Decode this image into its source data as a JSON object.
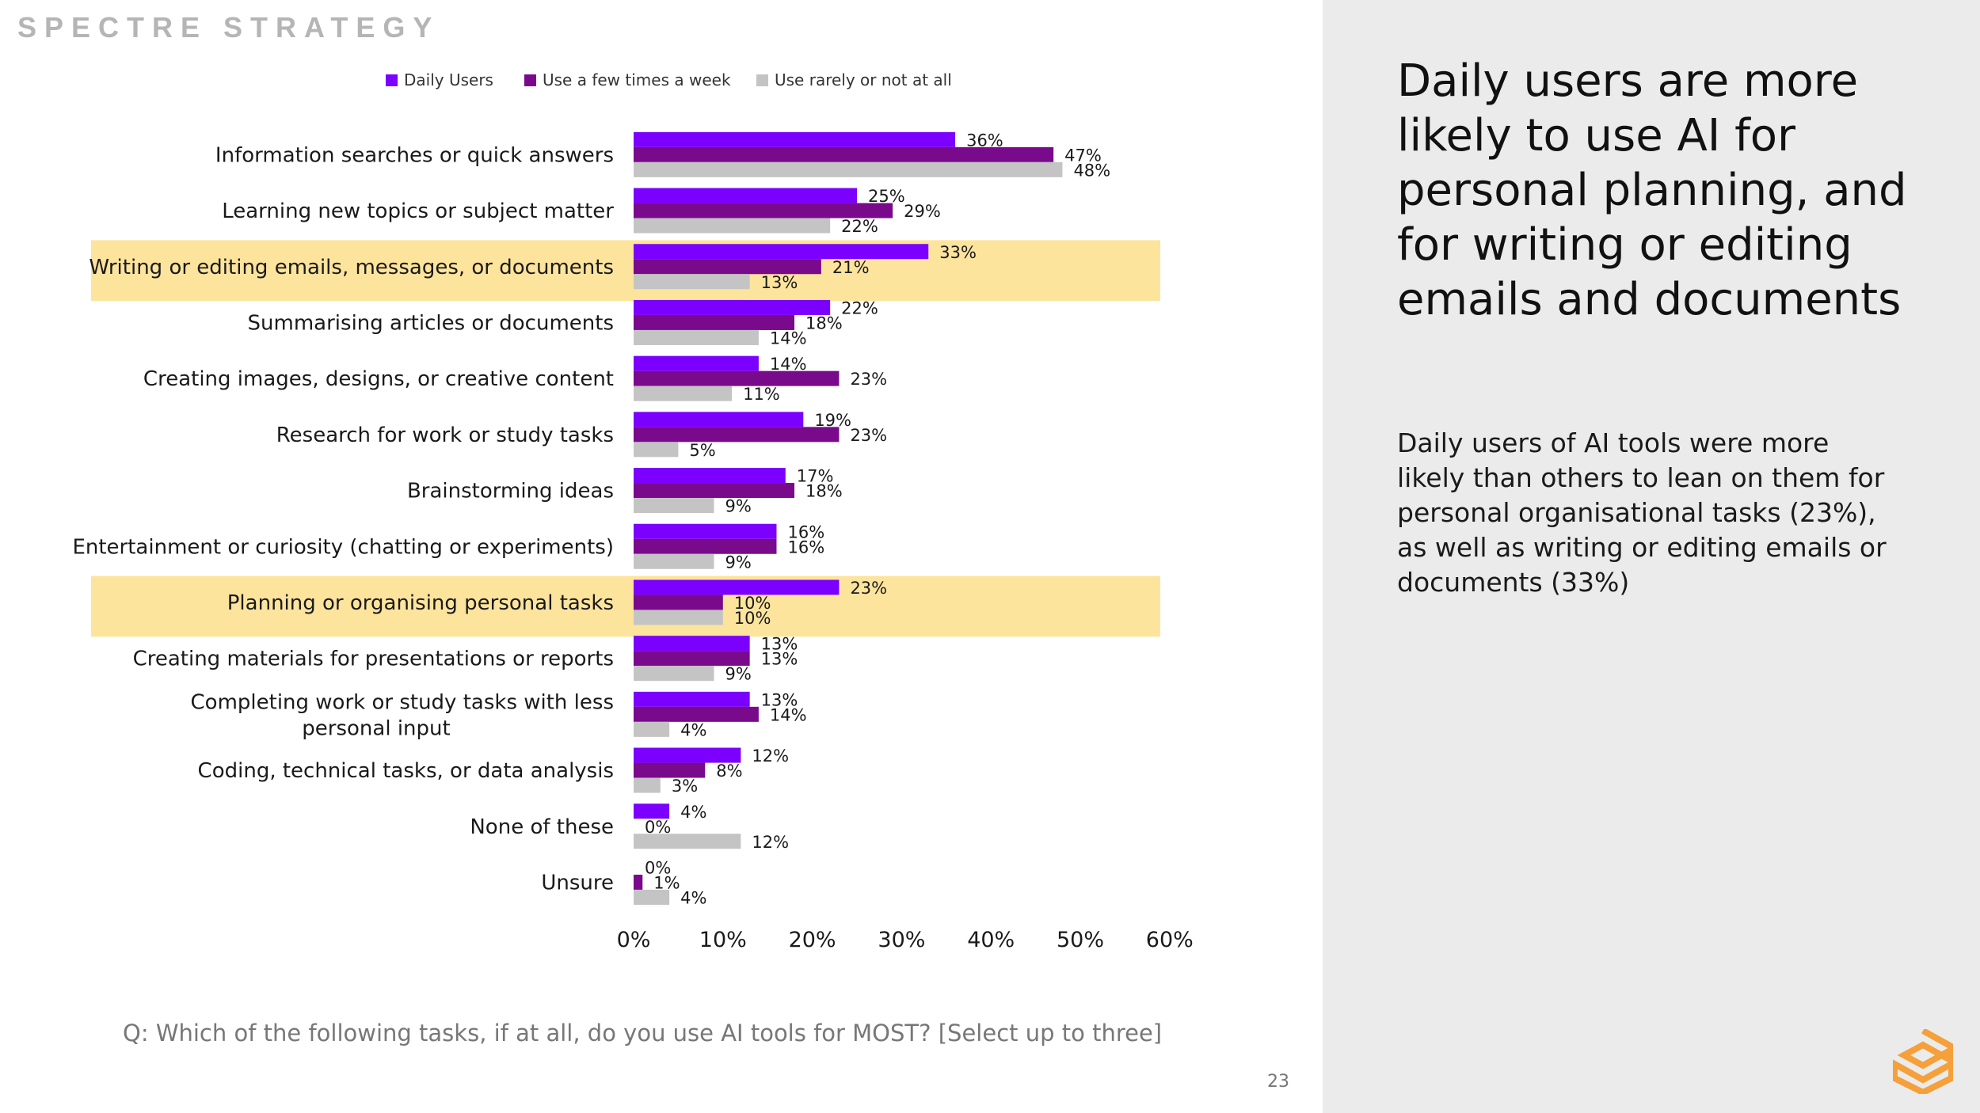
{
  "brand": "SPECTRE STRATEGY",
  "headline": "Daily users are more likely to use AI for personal planning, and for writing or editing emails and documents",
  "body": "Daily users of AI tools were more likely than others to lean on them for personal organisational tasks (23%), as well as writing or editing emails or documents (33%)",
  "question": "Q: Which of the following tasks, if at all, do you use AI tools for MOST? [Select up to three]",
  "page_number": "23",
  "colors": {
    "daily": "#7b00ff",
    "weekly": "#7a0a8c",
    "rarely": "#c4c4c4",
    "highlight": "#fde49d",
    "panel": "#ebebeb",
    "logo": "#f5a03a"
  },
  "chart_data": {
    "type": "bar",
    "orientation": "horizontal",
    "title": "",
    "xlabel": "",
    "ylabel": "",
    "xlim": [
      0,
      60
    ],
    "x_ticks": [
      "0%",
      "10%",
      "20%",
      "30%",
      "40%",
      "50%",
      "60%"
    ],
    "legend_position": "top",
    "categories": [
      "Information searches or quick answers",
      "Learning new topics or subject matter",
      "Writing or editing emails, messages, or documents",
      "Summarising articles or documents",
      "Creating images, designs, or creative content",
      "Research for work or study tasks",
      "Brainstorming ideas",
      "Entertainment or curiosity (chatting or experiments)",
      "Planning or organising personal tasks",
      "Creating materials for presentations or reports",
      "Completing work or study tasks with less personal input",
      "Coding, technical tasks, or data analysis",
      "None of these",
      "Unsure"
    ],
    "highlighted_categories": [
      "Writing or editing emails, messages, or documents",
      "Planning or organising personal tasks"
    ],
    "series": [
      {
        "name": "Daily Users",
        "values": [
          36,
          25,
          33,
          22,
          14,
          19,
          17,
          16,
          23,
          13,
          13,
          12,
          4,
          0
        ]
      },
      {
        "name": "Use a few times a week",
        "values": [
          47,
          29,
          21,
          18,
          23,
          23,
          18,
          16,
          10,
          13,
          14,
          8,
          0,
          1
        ]
      },
      {
        "name": "Use rarely or not at all",
        "values": [
          48,
          22,
          13,
          14,
          11,
          5,
          9,
          9,
          10,
          9,
          4,
          3,
          12,
          4
        ]
      }
    ]
  }
}
